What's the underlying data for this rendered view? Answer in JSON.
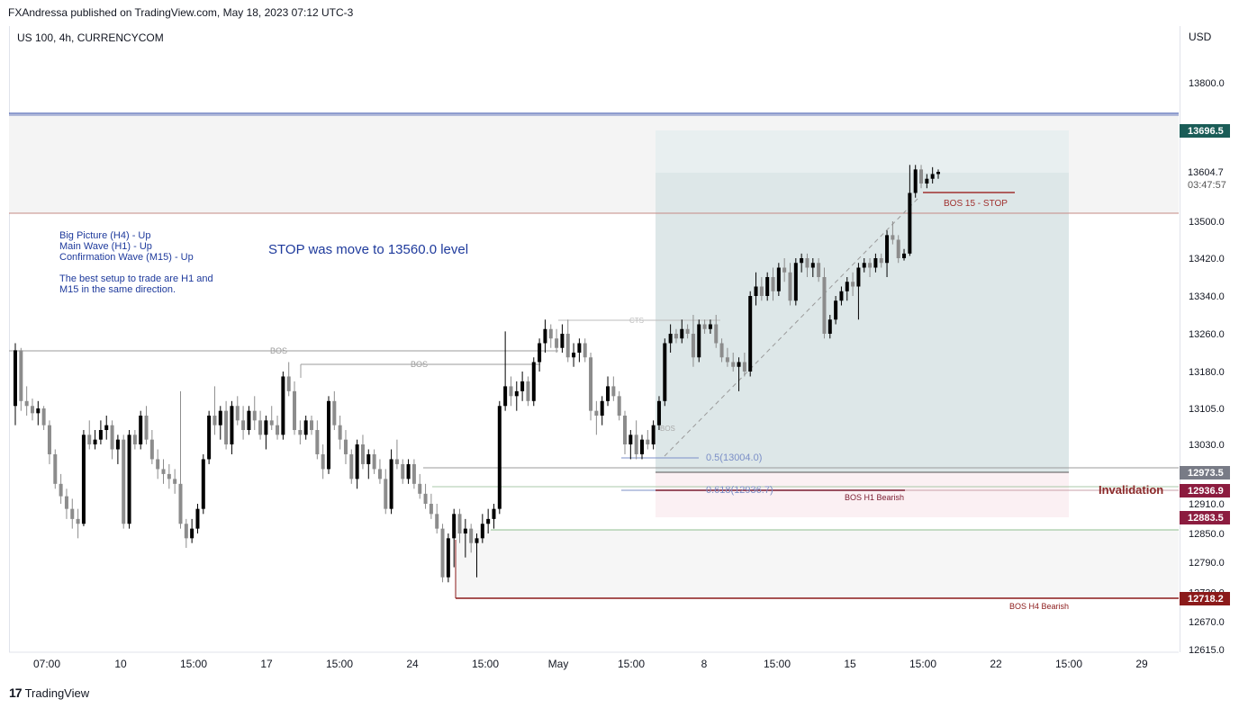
{
  "header": {
    "published": "FXAndressa published on TradingView.com, May 18, 2023 07:12 UTC-3"
  },
  "symbol": "US 100, 4h, CURRENCYCOM",
  "currency": "USD",
  "footer": {
    "brand": "TradingView"
  },
  "notes": {
    "line1": "Big Picture (H4) - Up",
    "line2": "Main Wave (H1) - Up",
    "line3": "Confirmation Wave (M15) - Up",
    "line4": "The best setup to trade are H1 and",
    "line5": "M15 in the same direction.",
    "stop": "STOP was move to 13560.0 level"
  },
  "colors": {
    "up": "#000000",
    "down": "#8c8c8c",
    "navy": "#1e3a9c",
    "teal_label": "#1a5c57",
    "grey_label": "#787b86",
    "crimson_label": "#8c1c3f",
    "darkred_label": "#8b1a1a",
    "red_line": "#a0312f"
  },
  "chart_data": {
    "type": "candlestick",
    "title": "US 100, 4h, CURRENCYCOM",
    "y_axis": {
      "unit": "USD",
      "ticks": [
        13800.0,
        13500.0,
        13420.0,
        13340.0,
        13260.0,
        13180.0,
        13105.0,
        13030.0,
        12910.0,
        12850.0,
        12790.0,
        12730.0,
        12670.0,
        12615.0
      ],
      "tick_labels": [
        "13800.0",
        "13500.0",
        "13420.0",
        "13340.0",
        "13260.0",
        "13180.0",
        "13105.0",
        "13030.0",
        "12910.0",
        "12850.0",
        "12790.0",
        "12730.0",
        "12670.0",
        "12615.0"
      ]
    },
    "x_axis": {
      "tick_labels": [
        "07:00",
        "10",
        "15:00",
        "17",
        "15:00",
        "24",
        "15:00",
        "May",
        "15:00",
        "8",
        "15:00",
        "15",
        "15:00",
        "22",
        "15:00",
        "29"
      ]
    },
    "price_labels": [
      {
        "text": "13696.5",
        "value": 13696.5,
        "style": "teal"
      },
      {
        "text": "13604.7",
        "value": 13604.7,
        "style": "current"
      },
      {
        "text": "03:47:57",
        "value": 13578,
        "style": "countdown"
      },
      {
        "text": "12973.5",
        "value": 12973.5,
        "style": "grey"
      },
      {
        "text": "12936.9",
        "value": 12936.9,
        "style": "crimson"
      },
      {
        "text": "12883.5",
        "value": 12883.5,
        "style": "crimson"
      },
      {
        "text": "12718.2",
        "value": 12718.2,
        "style": "darkred"
      }
    ],
    "annotations": {
      "bos1": "BOS",
      "bos2": "BOS",
      "cts": "CTS",
      "bos_small": "BOS",
      "fib05": "0.5(13004.0)",
      "fib0618": "0.618(12936.7)",
      "bos_h1": "BOS H1 Bearish",
      "invalidation": "Invalidation",
      "bos15": "BOS 15 - STOP",
      "bos_h4": "BOS H4 Bearish"
    },
    "zones": {
      "long_position": {
        "entry": 12973.5,
        "target": 13696.5,
        "stop": 12883.5
      },
      "upper_band": {
        "high": 13696.5,
        "low": 13514
      }
    },
    "levels": {
      "blue_top": 13724,
      "red_line": 13514,
      "green_line": 12855,
      "bos_h4": 12718.2
    },
    "candles": [
      {
        "o": 13110,
        "h": 13240,
        "l": 13070,
        "c": 13225
      },
      {
        "o": 13225,
        "h": 13230,
        "l": 13100,
        "c": 13120
      },
      {
        "o": 13120,
        "h": 13150,
        "l": 13090,
        "c": 13110
      },
      {
        "o": 13110,
        "h": 13125,
        "l": 13080,
        "c": 13095
      },
      {
        "o": 13095,
        "h": 13120,
        "l": 13070,
        "c": 13105
      },
      {
        "o": 13105,
        "h": 13110,
        "l": 13060,
        "c": 13070
      },
      {
        "o": 13070,
        "h": 13080,
        "l": 12990,
        "c": 13010
      },
      {
        "o": 13010,
        "h": 13020,
        "l": 12940,
        "c": 12950
      },
      {
        "o": 12950,
        "h": 12970,
        "l": 12910,
        "c": 12925
      },
      {
        "o": 12925,
        "h": 12940,
        "l": 12880,
        "c": 12900
      },
      {
        "o": 12900,
        "h": 12920,
        "l": 12860,
        "c": 12880
      },
      {
        "o": 12880,
        "h": 12900,
        "l": 12840,
        "c": 12870
      },
      {
        "o": 12870,
        "h": 13060,
        "l": 12865,
        "c": 13050
      },
      {
        "o": 13050,
        "h": 13080,
        "l": 13020,
        "c": 13030
      },
      {
        "o": 13030,
        "h": 13060,
        "l": 13020,
        "c": 13040
      },
      {
        "o": 13040,
        "h": 13080,
        "l": 13030,
        "c": 13060
      },
      {
        "o": 13060,
        "h": 13090,
        "l": 13040,
        "c": 13070
      },
      {
        "o": 13070,
        "h": 13080,
        "l": 13000,
        "c": 13020
      },
      {
        "o": 13020,
        "h": 13050,
        "l": 12990,
        "c": 13040
      },
      {
        "o": 13040,
        "h": 13050,
        "l": 12860,
        "c": 12870
      },
      {
        "o": 12870,
        "h": 13060,
        "l": 12860,
        "c": 13050
      },
      {
        "o": 13050,
        "h": 13060,
        "l": 13020,
        "c": 13030
      },
      {
        "o": 13030,
        "h": 13100,
        "l": 13020,
        "c": 13090
      },
      {
        "o": 13090,
        "h": 13110,
        "l": 13030,
        "c": 13040
      },
      {
        "o": 13040,
        "h": 13060,
        "l": 12990,
        "c": 13000
      },
      {
        "o": 13000,
        "h": 13020,
        "l": 12960,
        "c": 12980
      },
      {
        "o": 12980,
        "h": 13000,
        "l": 12950,
        "c": 12970
      },
      {
        "o": 12970,
        "h": 12990,
        "l": 12940,
        "c": 12960
      },
      {
        "o": 12960,
        "h": 12980,
        "l": 12930,
        "c": 12950
      },
      {
        "o": 12950,
        "h": 13140,
        "l": 12860,
        "c": 12870
      },
      {
        "o": 12870,
        "h": 12880,
        "l": 12820,
        "c": 12840
      },
      {
        "o": 12840,
        "h": 12880,
        "l": 12830,
        "c": 12860
      },
      {
        "o": 12860,
        "h": 12910,
        "l": 12850,
        "c": 12900
      },
      {
        "o": 12900,
        "h": 13010,
        "l": 12890,
        "c": 13000
      },
      {
        "o": 13000,
        "h": 13100,
        "l": 12990,
        "c": 13090
      },
      {
        "o": 13090,
        "h": 13150,
        "l": 13050,
        "c": 13070
      },
      {
        "o": 13070,
        "h": 13110,
        "l": 13040,
        "c": 13100
      },
      {
        "o": 13100,
        "h": 13120,
        "l": 13020,
        "c": 13030
      },
      {
        "o": 13030,
        "h": 13120,
        "l": 13010,
        "c": 13110
      },
      {
        "o": 13110,
        "h": 13130,
        "l": 13070,
        "c": 13080
      },
      {
        "o": 13080,
        "h": 13110,
        "l": 13040,
        "c": 13060
      },
      {
        "o": 13060,
        "h": 13110,
        "l": 13050,
        "c": 13100
      },
      {
        "o": 13100,
        "h": 13130,
        "l": 13060,
        "c": 13080
      },
      {
        "o": 13080,
        "h": 13100,
        "l": 13040,
        "c": 13050
      },
      {
        "o": 13050,
        "h": 13090,
        "l": 13020,
        "c": 13080
      },
      {
        "o": 13080,
        "h": 13110,
        "l": 13060,
        "c": 13070
      },
      {
        "o": 13070,
        "h": 13090,
        "l": 13040,
        "c": 13050
      },
      {
        "o": 13050,
        "h": 13180,
        "l": 13040,
        "c": 13170
      },
      {
        "o": 13170,
        "h": 13200,
        "l": 13130,
        "c": 13140
      },
      {
        "o": 13140,
        "h": 13160,
        "l": 13050,
        "c": 13060
      },
      {
        "o": 13060,
        "h": 13080,
        "l": 13030,
        "c": 13050
      },
      {
        "o": 13050,
        "h": 13090,
        "l": 13040,
        "c": 13080
      },
      {
        "o": 13080,
        "h": 13090,
        "l": 13050,
        "c": 13060
      },
      {
        "o": 13060,
        "h": 13080,
        "l": 13000,
        "c": 13010
      },
      {
        "o": 13010,
        "h": 13030,
        "l": 12960,
        "c": 12980
      },
      {
        "o": 12980,
        "h": 13130,
        "l": 12970,
        "c": 13120
      },
      {
        "o": 13120,
        "h": 13140,
        "l": 13060,
        "c": 13070
      },
      {
        "o": 13070,
        "h": 13090,
        "l": 13020,
        "c": 13040
      },
      {
        "o": 13040,
        "h": 13060,
        "l": 12990,
        "c": 13010
      },
      {
        "o": 13010,
        "h": 13020,
        "l": 12950,
        "c": 12960
      },
      {
        "o": 12960,
        "h": 13040,
        "l": 12940,
        "c": 13030
      },
      {
        "o": 13030,
        "h": 13050,
        "l": 12980,
        "c": 12990
      },
      {
        "o": 12990,
        "h": 13020,
        "l": 12960,
        "c": 13010
      },
      {
        "o": 13010,
        "h": 13020,
        "l": 12970,
        "c": 12980
      },
      {
        "o": 12980,
        "h": 13000,
        "l": 12950,
        "c": 12960
      },
      {
        "o": 12960,
        "h": 12980,
        "l": 12890,
        "c": 12900
      },
      {
        "o": 12900,
        "h": 13020,
        "l": 12890,
        "c": 13000
      },
      {
        "o": 13000,
        "h": 13040,
        "l": 12980,
        "c": 12990
      },
      {
        "o": 12990,
        "h": 13000,
        "l": 12950,
        "c": 12960
      },
      {
        "o": 12960,
        "h": 13000,
        "l": 12950,
        "c": 12990
      },
      {
        "o": 12990,
        "h": 13000,
        "l": 12940,
        "c": 12950
      },
      {
        "o": 12950,
        "h": 12970,
        "l": 12920,
        "c": 12930
      },
      {
        "o": 12930,
        "h": 12950,
        "l": 12900,
        "c": 12910
      },
      {
        "o": 12910,
        "h": 12930,
        "l": 12880,
        "c": 12890
      },
      {
        "o": 12890,
        "h": 12910,
        "l": 12850,
        "c": 12860
      },
      {
        "o": 12860,
        "h": 12870,
        "l": 12750,
        "c": 12760
      },
      {
        "o": 12760,
        "h": 12850,
        "l": 12750,
        "c": 12840
      },
      {
        "o": 12840,
        "h": 12900,
        "l": 12780,
        "c": 12890
      },
      {
        "o": 12890,
        "h": 12900,
        "l": 12830,
        "c": 12850
      },
      {
        "o": 12850,
        "h": 12880,
        "l": 12800,
        "c": 12860
      },
      {
        "o": 12860,
        "h": 12870,
        "l": 12810,
        "c": 12830
      },
      {
        "o": 12830,
        "h": 12850,
        "l": 12760,
        "c": 12840
      },
      {
        "o": 12840,
        "h": 12890,
        "l": 12830,
        "c": 12870
      },
      {
        "o": 12870,
        "h": 12900,
        "l": 12850,
        "c": 12880
      },
      {
        "o": 12880,
        "h": 12910,
        "l": 12860,
        "c": 12900
      },
      {
        "o": 12900,
        "h": 13120,
        "l": 12890,
        "c": 13110
      },
      {
        "o": 13110,
        "h": 13265,
        "l": 13100,
        "c": 13150
      },
      {
        "o": 13150,
        "h": 13170,
        "l": 13110,
        "c": 13130
      },
      {
        "o": 13130,
        "h": 13160,
        "l": 13100,
        "c": 13140
      },
      {
        "o": 13140,
        "h": 13180,
        "l": 13120,
        "c": 13160
      },
      {
        "o": 13160,
        "h": 13170,
        "l": 13110,
        "c": 13120
      },
      {
        "o": 13120,
        "h": 13210,
        "l": 13110,
        "c": 13200
      },
      {
        "o": 13200,
        "h": 13250,
        "l": 13180,
        "c": 13240
      },
      {
        "o": 13240,
        "h": 13290,
        "l": 13220,
        "c": 13270
      },
      {
        "o": 13270,
        "h": 13280,
        "l": 13230,
        "c": 13250
      },
      {
        "o": 13250,
        "h": 13270,
        "l": 13220,
        "c": 13230
      },
      {
        "o": 13230,
        "h": 13280,
        "l": 13220,
        "c": 13260
      },
      {
        "o": 13260,
        "h": 13290,
        "l": 13200,
        "c": 13210
      },
      {
        "o": 13210,
        "h": 13240,
        "l": 13190,
        "c": 13220
      },
      {
        "o": 13220,
        "h": 13250,
        "l": 13200,
        "c": 13240
      },
      {
        "o": 13240,
        "h": 13250,
        "l": 13200,
        "c": 13210
      },
      {
        "o": 13210,
        "h": 13220,
        "l": 13080,
        "c": 13100
      },
      {
        "o": 13100,
        "h": 13120,
        "l": 13050,
        "c": 13090
      },
      {
        "o": 13090,
        "h": 13130,
        "l": 13070,
        "c": 13120
      },
      {
        "o": 13120,
        "h": 13170,
        "l": 13110,
        "c": 13150
      },
      {
        "o": 13150,
        "h": 13170,
        "l": 13120,
        "c": 13130
      },
      {
        "o": 13130,
        "h": 13140,
        "l": 13080,
        "c": 13090
      },
      {
        "o": 13090,
        "h": 13100,
        "l": 13010,
        "c": 13030
      },
      {
        "o": 13030,
        "h": 13060,
        "l": 13000,
        "c": 13050
      },
      {
        "o": 13050,
        "h": 13080,
        "l": 13000,
        "c": 13010
      },
      {
        "o": 13010,
        "h": 13050,
        "l": 13000,
        "c": 13040
      },
      {
        "o": 13040,
        "h": 13060,
        "l": 13020,
        "c": 13030
      },
      {
        "o": 13030,
        "h": 13080,
        "l": 13020,
        "c": 13070
      },
      {
        "o": 13070,
        "h": 13130,
        "l": 13060,
        "c": 13120
      },
      {
        "o": 13120,
        "h": 13250,
        "l": 13110,
        "c": 13240
      },
      {
        "o": 13240,
        "h": 13280,
        "l": 13220,
        "c": 13260
      },
      {
        "o": 13260,
        "h": 13270,
        "l": 13240,
        "c": 13250
      },
      {
        "o": 13250,
        "h": 13290,
        "l": 13240,
        "c": 13270
      },
      {
        "o": 13270,
        "h": 13280,
        "l": 13250,
        "c": 13260
      },
      {
        "o": 13260,
        "h": 13300,
        "l": 13190,
        "c": 13210
      },
      {
        "o": 13210,
        "h": 13290,
        "l": 13200,
        "c": 13280
      },
      {
        "o": 13280,
        "h": 13290,
        "l": 13260,
        "c": 13270
      },
      {
        "o": 13270,
        "h": 13290,
        "l": 13260,
        "c": 13280
      },
      {
        "o": 13280,
        "h": 13300,
        "l": 13230,
        "c": 13240
      },
      {
        "o": 13240,
        "h": 13250,
        "l": 13200,
        "c": 13210
      },
      {
        "o": 13210,
        "h": 13230,
        "l": 13190,
        "c": 13200
      },
      {
        "o": 13200,
        "h": 13220,
        "l": 13180,
        "c": 13190
      },
      {
        "o": 13190,
        "h": 13210,
        "l": 13140,
        "c": 13200
      },
      {
        "o": 13200,
        "h": 13220,
        "l": 13170,
        "c": 13180
      },
      {
        "o": 13180,
        "h": 13350,
        "l": 13170,
        "c": 13340
      },
      {
        "o": 13340,
        "h": 13390,
        "l": 13320,
        "c": 13360
      },
      {
        "o": 13360,
        "h": 13380,
        "l": 13330,
        "c": 13340
      },
      {
        "o": 13340,
        "h": 13390,
        "l": 13330,
        "c": 13380
      },
      {
        "o": 13380,
        "h": 13400,
        "l": 13330,
        "c": 13350
      },
      {
        "o": 13350,
        "h": 13410,
        "l": 13340,
        "c": 13400
      },
      {
        "o": 13400,
        "h": 13420,
        "l": 13370,
        "c": 13390
      },
      {
        "o": 13390,
        "h": 13410,
        "l": 13320,
        "c": 13330
      },
      {
        "o": 13330,
        "h": 13420,
        "l": 13320,
        "c": 13410
      },
      {
        "o": 13410,
        "h": 13430,
        "l": 13390,
        "c": 13420
      },
      {
        "o": 13420,
        "h": 13430,
        "l": 13380,
        "c": 13400
      },
      {
        "o": 13400,
        "h": 13420,
        "l": 13380,
        "c": 13410
      },
      {
        "o": 13410,
        "h": 13420,
        "l": 13370,
        "c": 13380
      },
      {
        "o": 13380,
        "h": 13400,
        "l": 13250,
        "c": 13260
      },
      {
        "o": 13260,
        "h": 13300,
        "l": 13250,
        "c": 13290
      },
      {
        "o": 13290,
        "h": 13340,
        "l": 13280,
        "c": 13330
      },
      {
        "o": 13330,
        "h": 13360,
        "l": 13320,
        "c": 13350
      },
      {
        "o": 13350,
        "h": 13380,
        "l": 13330,
        "c": 13370
      },
      {
        "o": 13370,
        "h": 13390,
        "l": 13340,
        "c": 13360
      },
      {
        "o": 13360,
        "h": 13410,
        "l": 13290,
        "c": 13400
      },
      {
        "o": 13400,
        "h": 13420,
        "l": 13390,
        "c": 13410
      },
      {
        "o": 13410,
        "h": 13420,
        "l": 13380,
        "c": 13400
      },
      {
        "o": 13400,
        "h": 13430,
        "l": 13390,
        "c": 13420
      },
      {
        "o": 13420,
        "h": 13430,
        "l": 13400,
        "c": 13410
      },
      {
        "o": 13410,
        "h": 13480,
        "l": 13380,
        "c": 13470
      },
      {
        "o": 13470,
        "h": 13500,
        "l": 13450,
        "c": 13460
      },
      {
        "o": 13460,
        "h": 13470,
        "l": 13410,
        "c": 13420
      },
      {
        "o": 13420,
        "h": 13440,
        "l": 13415,
        "c": 13430
      },
      {
        "o": 13430,
        "h": 13620,
        "l": 13425,
        "c": 13560
      },
      {
        "o": 13560,
        "h": 13620,
        "l": 13550,
        "c": 13610
      },
      {
        "o": 13610,
        "h": 13620,
        "l": 13570,
        "c": 13580
      },
      {
        "o": 13580,
        "h": 13600,
        "l": 13570,
        "c": 13590
      },
      {
        "o": 13590,
        "h": 13615,
        "l": 13580,
        "c": 13600
      },
      {
        "o": 13600,
        "h": 13610,
        "l": 13590,
        "c": 13604.7
      }
    ]
  }
}
